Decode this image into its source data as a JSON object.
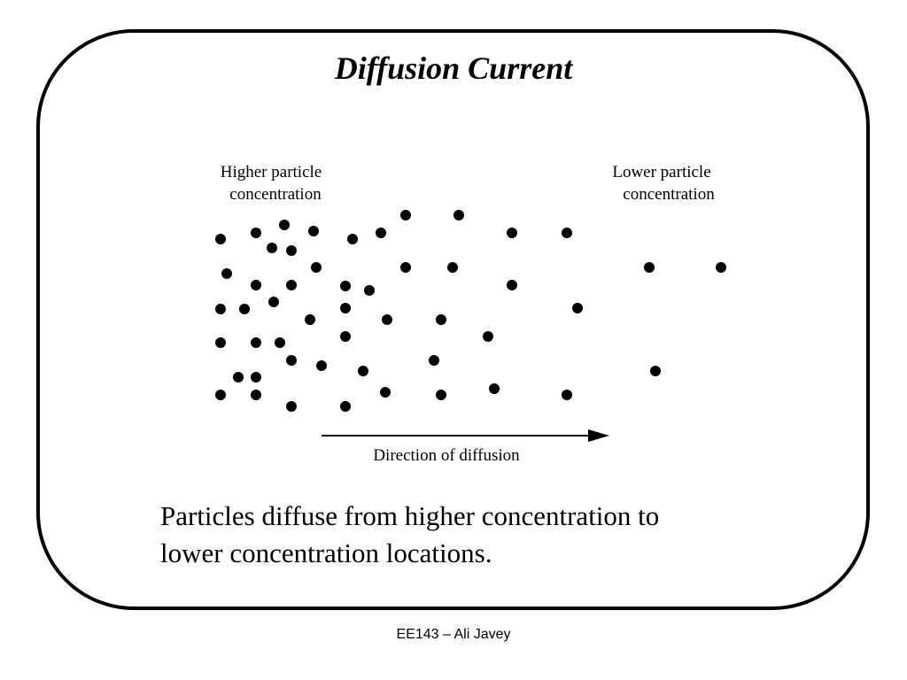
{
  "slide": {
    "title": "Diffusion Current",
    "footer": "EE143 – Ali Javey"
  },
  "diagram": {
    "left_label_line1": "Higher particle",
    "left_label_line2": "concentration",
    "right_label_line1": "Lower particle",
    "right_label_line2": "concentration",
    "arrow_label": "Direction of diffusion",
    "particle_color": "#000000"
  },
  "statement": {
    "line1": "Particles diffuse from higher concentration to",
    "line2": "lower concentration locations."
  }
}
